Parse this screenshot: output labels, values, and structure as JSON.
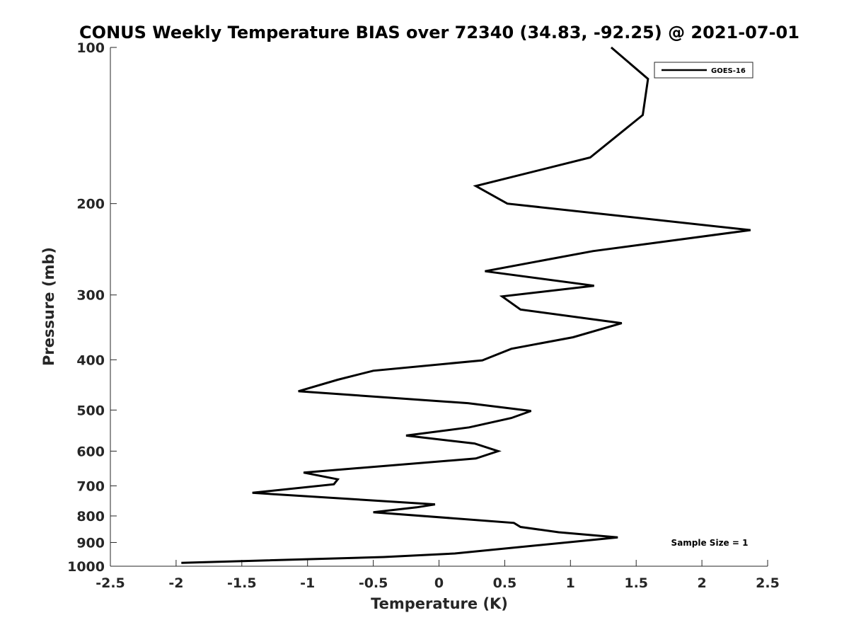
{
  "chart_data": {
    "type": "line",
    "title": "CONUS Weekly Temperature BIAS over 72340 (34.83, -92.25) @ 2021-07-01",
    "xlabel": "Temperature (K)",
    "ylabel": "Pressure (mb)",
    "xlim": [
      -2.5,
      2.5
    ],
    "ylim": [
      1000,
      100
    ],
    "yscale": "log",
    "y_reversed": true,
    "grid": false,
    "legend_position": "top-right",
    "x_ticks": [
      -2.5,
      -2,
      -1.5,
      -1,
      -0.5,
      0,
      0.5,
      1,
      1.5,
      2,
      2.5
    ],
    "x_tick_labels": [
      "-2.5",
      "-2",
      "-1.5",
      "-1",
      "-0.5",
      "0",
      "0.5",
      "1",
      "1.5",
      "2",
      "2.5"
    ],
    "y_ticks": [
      100,
      200,
      300,
      400,
      500,
      600,
      700,
      800,
      900,
      1000
    ],
    "y_tick_labels": [
      "100",
      "200",
      "300",
      "400",
      "500",
      "600",
      "700",
      "800",
      "900",
      "1000"
    ],
    "series": [
      {
        "name": "GOES-16",
        "color": "#000000",
        "points": [
          {
            "t": 1.31,
            "p": 100
          },
          {
            "t": 1.59,
            "p": 115
          },
          {
            "t": 1.55,
            "p": 135
          },
          {
            "t": 1.15,
            "p": 163
          },
          {
            "t": 0.28,
            "p": 185
          },
          {
            "t": 0.52,
            "p": 200
          },
          {
            "t": 2.37,
            "p": 225
          },
          {
            "t": 1.17,
            "p": 247
          },
          {
            "t": 0.35,
            "p": 270
          },
          {
            "t": 1.18,
            "p": 288
          },
          {
            "t": 0.48,
            "p": 302
          },
          {
            "t": 0.62,
            "p": 320
          },
          {
            "t": 1.39,
            "p": 340
          },
          {
            "t": 1.02,
            "p": 362
          },
          {
            "t": 0.55,
            "p": 381
          },
          {
            "t": 0.33,
            "p": 401
          },
          {
            "t": -0.5,
            "p": 420
          },
          {
            "t": -0.77,
            "p": 437
          },
          {
            "t": -1.07,
            "p": 460
          },
          {
            "t": 0.22,
            "p": 485
          },
          {
            "t": 0.7,
            "p": 502
          },
          {
            "t": 0.55,
            "p": 518
          },
          {
            "t": 0.23,
            "p": 540
          },
          {
            "t": -0.25,
            "p": 560
          },
          {
            "t": 0.27,
            "p": 580
          },
          {
            "t": 0.45,
            "p": 600
          },
          {
            "t": 0.28,
            "p": 620
          },
          {
            "t": -1.03,
            "p": 660
          },
          {
            "t": -0.77,
            "p": 680
          },
          {
            "t": -0.8,
            "p": 695
          },
          {
            "t": -1.42,
            "p": 722
          },
          {
            "t": -0.03,
            "p": 760
          },
          {
            "t": -0.17,
            "p": 770
          },
          {
            "t": -0.5,
            "p": 787
          },
          {
            "t": 0.57,
            "p": 825
          },
          {
            "t": 0.62,
            "p": 840
          },
          {
            "t": 0.91,
            "p": 860
          },
          {
            "t": 1.36,
            "p": 880
          },
          {
            "t": 0.12,
            "p": 945
          },
          {
            "t": -0.42,
            "p": 960
          },
          {
            "t": -1.96,
            "p": 985
          }
        ]
      }
    ],
    "legend_entries": [
      "GOES-16"
    ],
    "annotation": "Sample Size = 1"
  }
}
